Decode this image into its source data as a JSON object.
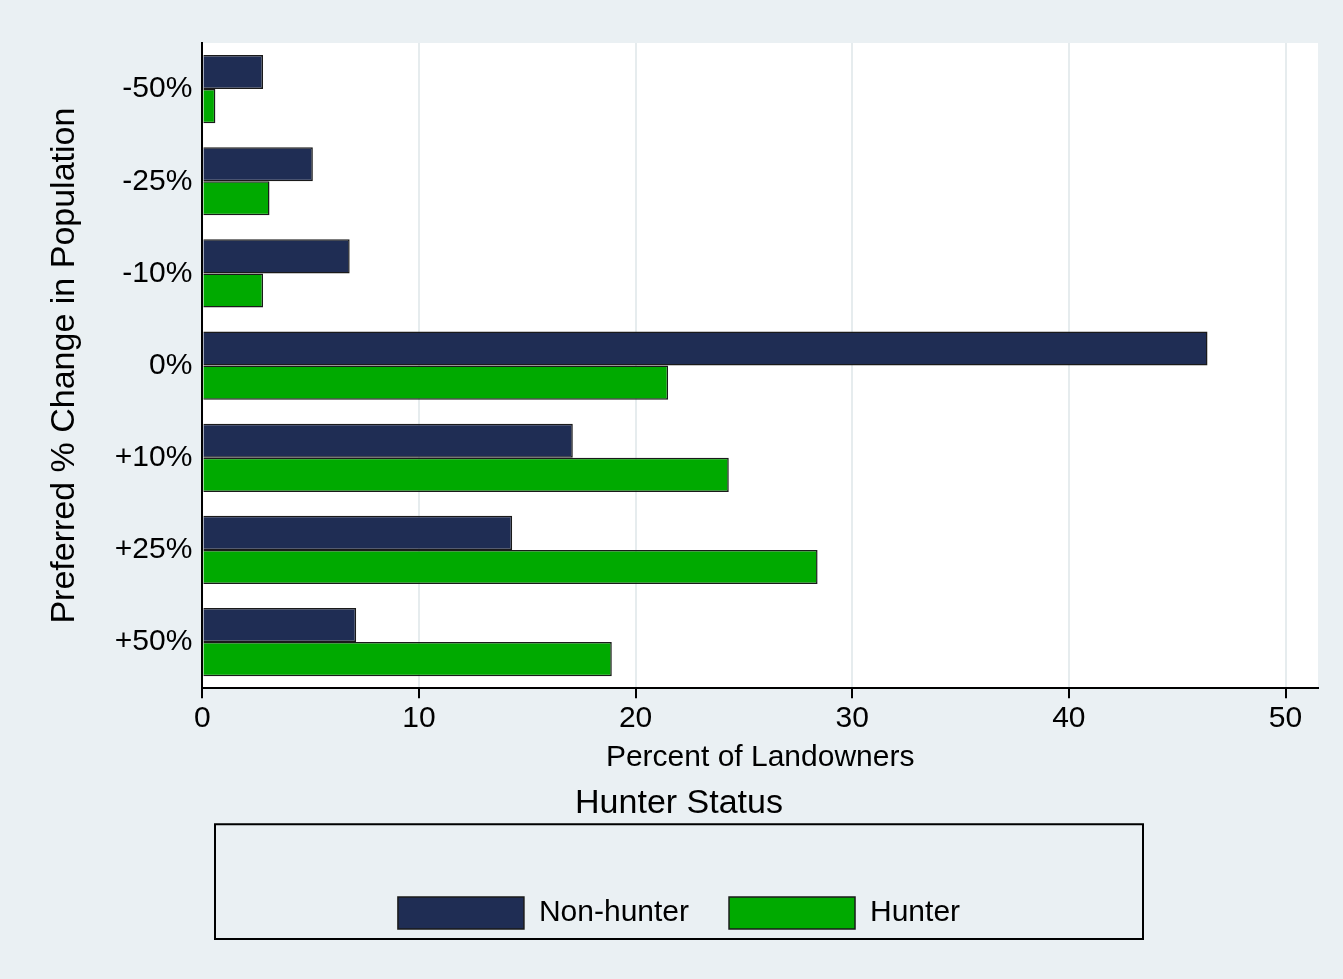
{
  "chart_data": {
    "type": "bar",
    "orientation": "horizontal",
    "xlabel": "Percent of Landowners",
    "ylabel": "Preferred % Change in Population",
    "legend_title": "Hunter Status",
    "categories": [
      "-50%",
      "-25%",
      "-10%",
      "0%",
      "+10%",
      "+25%",
      "+50%"
    ],
    "series": [
      {
        "name": "Non-hunter",
        "color": "#1f2d54",
        "values": [
          2.8,
          5.1,
          6.8,
          46.4,
          17.1,
          14.3,
          7.1
        ]
      },
      {
        "name": "Hunter",
        "color": "#00aa00",
        "values": [
          0.6,
          3.1,
          2.8,
          21.5,
          24.3,
          28.4,
          18.9
        ]
      }
    ],
    "xlim": [
      0,
      51.5
    ],
    "xticks": [
      0,
      10,
      20,
      30,
      40,
      50
    ],
    "grid": "x",
    "legend": "bottom"
  }
}
